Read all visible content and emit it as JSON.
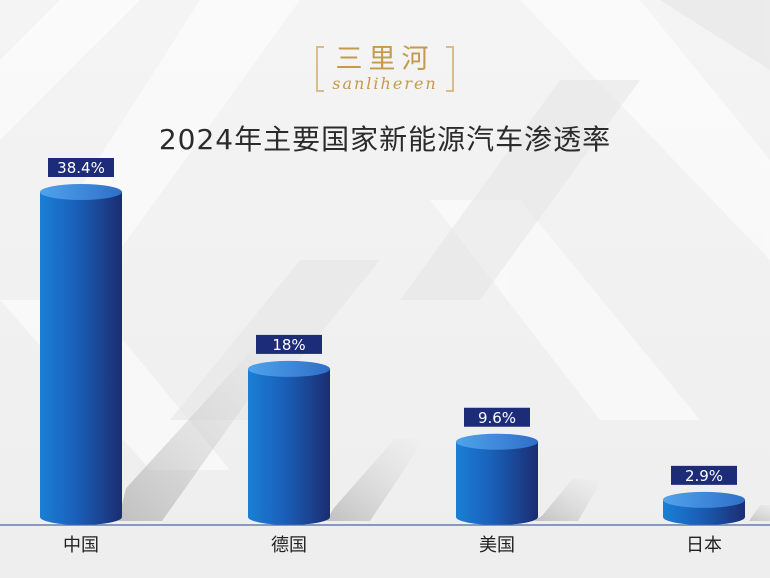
{
  "logo": {
    "cn": "三里河",
    "en": "sanliheren"
  },
  "chart_data": {
    "type": "bar",
    "title": "2024年主要国家新能源汽车渗透率",
    "categories": [
      "中国",
      "德国",
      "美国",
      "日本"
    ],
    "values": [
      38.4,
      18,
      9.6,
      2.9
    ],
    "value_labels": [
      "38.4%",
      "18%",
      "9.6%",
      "2.9%"
    ],
    "unit": "%",
    "ylim": [
      0,
      38.4
    ],
    "grid": false,
    "legend": "none",
    "bar_style": "3d-cylinder",
    "colors": {
      "bar_light": "#1976d2",
      "bar_dark": "#1a2f78",
      "label_bg": "#1c2c78",
      "axis": "#4a64a8"
    }
  }
}
